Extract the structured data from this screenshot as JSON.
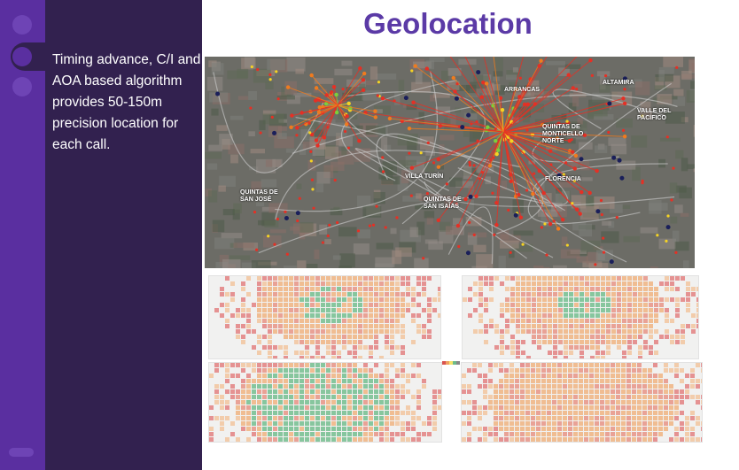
{
  "slide": {
    "title": "Geolocation",
    "description": "Timing advance, C/I and AOA based algorithm provides 50-150m precision location for each call."
  },
  "map": {
    "place_labels": [
      "ARRANCAS",
      "ALTAMIRA",
      "QUINTAS DE MONTICELLO NORTE",
      "VILLA TURÍN",
      "FLORENCIA",
      "QUINTAS DE SAN ISAÍAS",
      "QUINTAS DE SAN JOSÉ",
      "VALLE DEL PACÍFICO"
    ]
  },
  "colors": {
    "sidebar": "#32214f",
    "rail": "#5a2fa0",
    "title": "#5b3aa6",
    "heat_red": "#d9534f",
    "heat_orange": "#f0a060",
    "heat_green": "#6dbb8a"
  }
}
